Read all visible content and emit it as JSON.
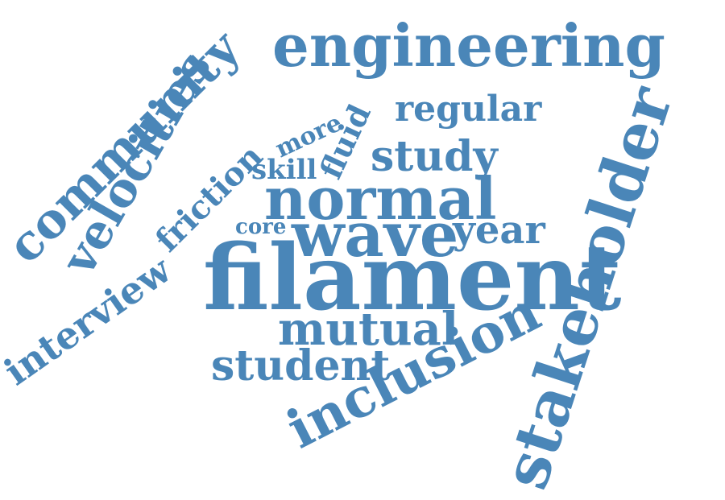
{
  "word_cloud": {
    "color": "#4a86b8",
    "words": {
      "engineering": "engineering",
      "community": "community",
      "velocities": "velocities",
      "stakeholder": "stakeholder",
      "filament": "filament",
      "normal": "normal",
      "wave": "wave",
      "inclusion": "inclusion",
      "interview": "interview",
      "friction": "friction",
      "mutual": "mutual",
      "student": "student",
      "study": "study",
      "regular": "regular",
      "fluid": "fluid",
      "more": "more",
      "skill": "skill",
      "core": "core",
      "year": "year"
    }
  }
}
